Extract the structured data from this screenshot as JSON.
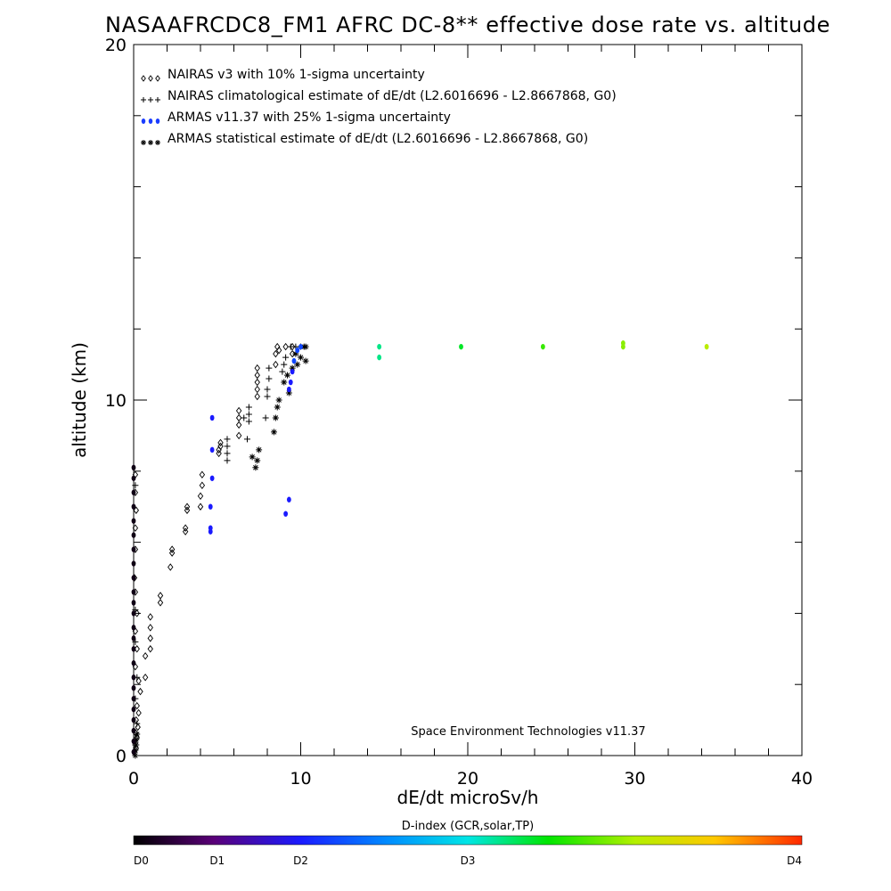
{
  "chart_data": {
    "type": "scatter",
    "title": "NASAAFRCDC8_FM1 AFRC DC-8** effective dose rate vs. altitude",
    "xlabel": "dE/dt microSv/h",
    "ylabel": "altitude (km)",
    "xlim": [
      0,
      40
    ],
    "ylim": [
      0,
      20
    ],
    "x_ticks": [
      "0",
      "10",
      "20",
      "30",
      "40"
    ],
    "y_ticks": [
      "0",
      "10",
      "20"
    ],
    "legend_placement": "top-left",
    "annotation": "Space Environment Technologies v11.37",
    "legend": [
      {
        "marker": "diamond",
        "label": "NAIRAS v3 with 10% 1-sigma uncertainty"
      },
      {
        "marker": "plus",
        "label": "NAIRAS climatological estimate of dE/dt (L2.6016696 - L2.8667868, G0)"
      },
      {
        "marker": "dot",
        "label": "ARMAS v11.37 with 25% 1-sigma uncertainty"
      },
      {
        "marker": "asterisk",
        "label": "ARMAS statistical estimate of dE/dt (L2.6016696 - L2.8667868, G0)"
      }
    ],
    "series": [
      {
        "marker": "diamond",
        "color": "#000000",
        "points": [
          [
            0.05,
            0.1
          ],
          [
            0.15,
            0.2
          ],
          [
            0.1,
            0.35
          ],
          [
            0.2,
            0.5
          ],
          [
            0.1,
            0.65
          ],
          [
            0.25,
            0.8
          ],
          [
            0.15,
            1.0
          ],
          [
            0.3,
            1.2
          ],
          [
            0.2,
            1.4
          ],
          [
            0.4,
            1.8
          ],
          [
            0.3,
            2.1
          ],
          [
            0.1,
            2.5
          ],
          [
            0.2,
            3.0
          ],
          [
            0.1,
            3.5
          ],
          [
            0.2,
            4.0
          ],
          [
            0.1,
            4.6
          ],
          [
            0.05,
            5.0
          ],
          [
            0.1,
            5.8
          ],
          [
            0.1,
            6.4
          ],
          [
            0.15,
            6.9
          ],
          [
            0.1,
            7.4
          ],
          [
            0.1,
            7.9
          ],
          [
            0.7,
            2.2
          ],
          [
            0.7,
            2.8
          ],
          [
            1.0,
            3.0
          ],
          [
            1.0,
            3.3
          ],
          [
            1.0,
            3.6
          ],
          [
            1.0,
            3.9
          ],
          [
            1.6,
            4.3
          ],
          [
            1.6,
            4.5
          ],
          [
            2.2,
            5.3
          ],
          [
            2.3,
            5.7
          ],
          [
            2.3,
            5.8
          ],
          [
            3.1,
            6.3
          ],
          [
            3.1,
            6.4
          ],
          [
            3.2,
            6.9
          ],
          [
            3.2,
            7.0
          ],
          [
            4.0,
            7.0
          ],
          [
            4.0,
            7.3
          ],
          [
            4.1,
            7.6
          ],
          [
            4.1,
            7.9
          ],
          [
            5.1,
            8.5
          ],
          [
            5.1,
            8.6
          ],
          [
            5.2,
            8.7
          ],
          [
            5.2,
            8.8
          ],
          [
            6.3,
            9.0
          ],
          [
            6.3,
            9.3
          ],
          [
            6.3,
            9.5
          ],
          [
            6.3,
            9.7
          ],
          [
            7.4,
            10.1
          ],
          [
            7.4,
            10.3
          ],
          [
            7.4,
            10.5
          ],
          [
            7.4,
            10.7
          ],
          [
            7.4,
            10.9
          ],
          [
            8.5,
            11.0
          ],
          [
            8.5,
            11.3
          ],
          [
            8.6,
            11.5
          ],
          [
            8.7,
            11.4
          ],
          [
            9.1,
            11.5
          ],
          [
            9.5,
            11.5
          ],
          [
            9.5,
            11.3
          ]
        ]
      },
      {
        "marker": "plus",
        "color": "#000000",
        "points": [
          [
            0.1,
            0.3
          ],
          [
            0.2,
            0.9
          ],
          [
            0.1,
            1.6
          ],
          [
            0.2,
            2.2
          ],
          [
            0.1,
            3.2
          ],
          [
            0.1,
            4.1
          ],
          [
            0.1,
            7.6
          ],
          [
            5.6,
            8.3
          ],
          [
            5.6,
            8.5
          ],
          [
            5.6,
            8.7
          ],
          [
            5.6,
            8.9
          ],
          [
            6.9,
            9.4
          ],
          [
            6.9,
            9.6
          ],
          [
            6.9,
            9.8
          ],
          [
            6.6,
            9.5
          ],
          [
            6.8,
            8.9
          ],
          [
            7.9,
            9.5
          ],
          [
            8.0,
            10.1
          ],
          [
            8.0,
            10.3
          ],
          [
            8.1,
            10.6
          ],
          [
            8.1,
            10.9
          ],
          [
            8.9,
            10.8
          ],
          [
            9.0,
            11.0
          ],
          [
            9.1,
            11.2
          ],
          [
            9.4,
            11.5
          ],
          [
            9.7,
            11.5
          ],
          [
            10.0,
            11.5
          ]
        ]
      },
      {
        "marker": "asterisk",
        "color": "#000000",
        "points": [
          [
            0.1,
            0.0
          ],
          [
            0.1,
            0.15
          ],
          [
            0.15,
            0.3
          ],
          [
            0.15,
            0.45
          ],
          [
            0.2,
            0.6
          ],
          [
            7.1,
            8.4
          ],
          [
            7.3,
            8.1
          ],
          [
            7.4,
            8.3
          ],
          [
            7.5,
            8.6
          ],
          [
            8.4,
            9.1
          ],
          [
            8.5,
            9.5
          ],
          [
            8.6,
            9.8
          ],
          [
            8.7,
            10.0
          ],
          [
            9.0,
            10.5
          ],
          [
            9.2,
            10.7
          ],
          [
            9.3,
            10.2
          ],
          [
            9.5,
            10.9
          ],
          [
            9.7,
            11.3
          ],
          [
            9.8,
            11.0
          ],
          [
            10.0,
            11.2
          ],
          [
            10.2,
            11.5
          ],
          [
            10.3,
            11.1
          ],
          [
            10.3,
            11.5
          ]
        ]
      }
    ],
    "armas_points": [
      [
        0.0,
        0.1,
        0.02
      ],
      [
        0.0,
        0.4,
        0.02
      ],
      [
        0.0,
        0.7,
        0.02
      ],
      [
        0.0,
        1.0,
        0.02
      ],
      [
        0.0,
        1.3,
        0.02
      ],
      [
        0.0,
        1.6,
        0.02
      ],
      [
        0.0,
        1.9,
        0.02
      ],
      [
        0.0,
        2.2,
        0.02
      ],
      [
        0.0,
        2.6,
        0.02
      ],
      [
        0.0,
        3.0,
        0.02
      ],
      [
        0.0,
        3.3,
        0.02
      ],
      [
        0.0,
        3.6,
        0.02
      ],
      [
        0.0,
        4.0,
        0.02
      ],
      [
        0.0,
        4.3,
        0.02
      ],
      [
        0.0,
        4.6,
        0.02
      ],
      [
        0.0,
        5.0,
        0.02
      ],
      [
        0.0,
        5.4,
        0.02
      ],
      [
        0.0,
        5.8,
        0.02
      ],
      [
        0.0,
        6.2,
        0.02
      ],
      [
        0.0,
        6.6,
        0.02
      ],
      [
        0.0,
        7.0,
        0.02
      ],
      [
        0.0,
        7.4,
        0.02
      ],
      [
        0.0,
        7.8,
        0.02
      ],
      [
        0.0,
        8.1,
        0.02
      ],
      [
        4.6,
        6.3,
        0.25
      ],
      [
        4.6,
        6.4,
        0.25
      ],
      [
        4.6,
        7.0,
        0.25
      ],
      [
        4.7,
        7.8,
        0.25
      ],
      [
        4.7,
        8.6,
        0.25
      ],
      [
        4.7,
        9.5,
        0.25
      ],
      [
        9.1,
        6.8,
        0.25
      ],
      [
        9.3,
        7.2,
        0.25
      ],
      [
        9.3,
        10.3,
        0.25
      ],
      [
        9.4,
        10.5,
        0.25
      ],
      [
        9.5,
        10.8,
        0.25
      ],
      [
        9.6,
        11.1,
        0.3
      ],
      [
        9.8,
        11.4,
        0.3
      ],
      [
        10.0,
        11.5,
        0.3
      ],
      [
        14.7,
        11.5,
        0.55
      ],
      [
        14.7,
        11.2,
        0.55
      ],
      [
        19.6,
        11.5,
        0.6
      ],
      [
        24.5,
        11.5,
        0.66
      ],
      [
        29.3,
        11.5,
        0.72
      ],
      [
        29.3,
        11.6,
        0.72
      ],
      [
        34.3,
        11.5,
        0.76
      ]
    ],
    "colorbar": {
      "title": "D-index (GCR,solar,TP)",
      "labels": [
        "D0",
        "D1",
        "D2",
        "D3",
        "D4"
      ],
      "label_positions": [
        0,
        0.125,
        0.25,
        0.5,
        1
      ]
    }
  }
}
